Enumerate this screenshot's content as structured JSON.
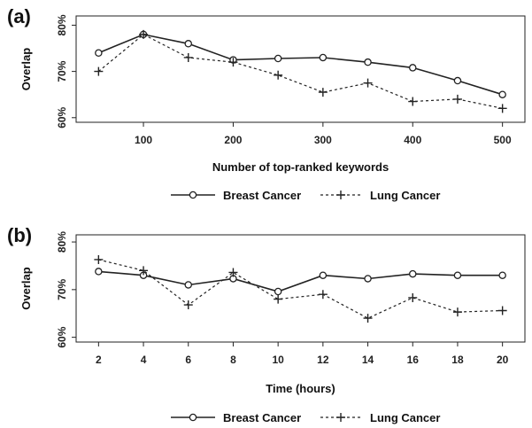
{
  "chart_data": [
    {
      "type": "line",
      "panel_label": "(a)",
      "x": [
        50,
        100,
        150,
        200,
        250,
        300,
        350,
        400,
        450,
        500
      ],
      "xticks": [
        100,
        200,
        300,
        400,
        500
      ],
      "xlim": [
        25,
        525
      ],
      "ylim": [
        59,
        82
      ],
      "yticks": [
        60,
        70,
        80
      ],
      "ytick_labels": [
        "60%",
        "70%",
        "80%"
      ],
      "xlabel": "Number of top-ranked keywords",
      "ylabel": "Overlap",
      "series": [
        {
          "name": "Breast Cancer",
          "style": "solid-circle",
          "values": [
            74,
            78,
            76,
            72.5,
            72.8,
            73,
            72,
            70.8,
            68,
            65
          ]
        },
        {
          "name": "Lung Cancer",
          "style": "dashed-plus",
          "values": [
            70,
            78,
            73,
            72,
            69.2,
            65.5,
            67.5,
            63.5,
            64,
            62
          ]
        }
      ],
      "legend_position": "bottom-center",
      "grid": false
    },
    {
      "type": "line",
      "panel_label": "(b)",
      "x": [
        2,
        4,
        6,
        8,
        10,
        12,
        14,
        16,
        18,
        20
      ],
      "xticks": [
        2,
        4,
        6,
        8,
        10,
        12,
        14,
        16,
        18,
        20
      ],
      "xlim": [
        1,
        21
      ],
      "ylim": [
        59,
        81.5
      ],
      "yticks": [
        60,
        70,
        80
      ],
      "ytick_labels": [
        "60%",
        "70%",
        "80%"
      ],
      "xlabel": "Time (hours)",
      "ylabel": "Overlap",
      "series": [
        {
          "name": "Breast Cancer",
          "style": "solid-circle",
          "values": [
            73.8,
            73,
            71,
            72.3,
            69.6,
            73,
            72.3,
            73.3,
            73,
            73
          ]
        },
        {
          "name": "Lung Cancer",
          "style": "dashed-plus",
          "values": [
            76.3,
            74,
            66.8,
            73.6,
            68,
            69,
            64,
            68.3,
            65.3,
            65.6
          ]
        }
      ],
      "legend_position": "bottom-center",
      "grid": false
    }
  ]
}
